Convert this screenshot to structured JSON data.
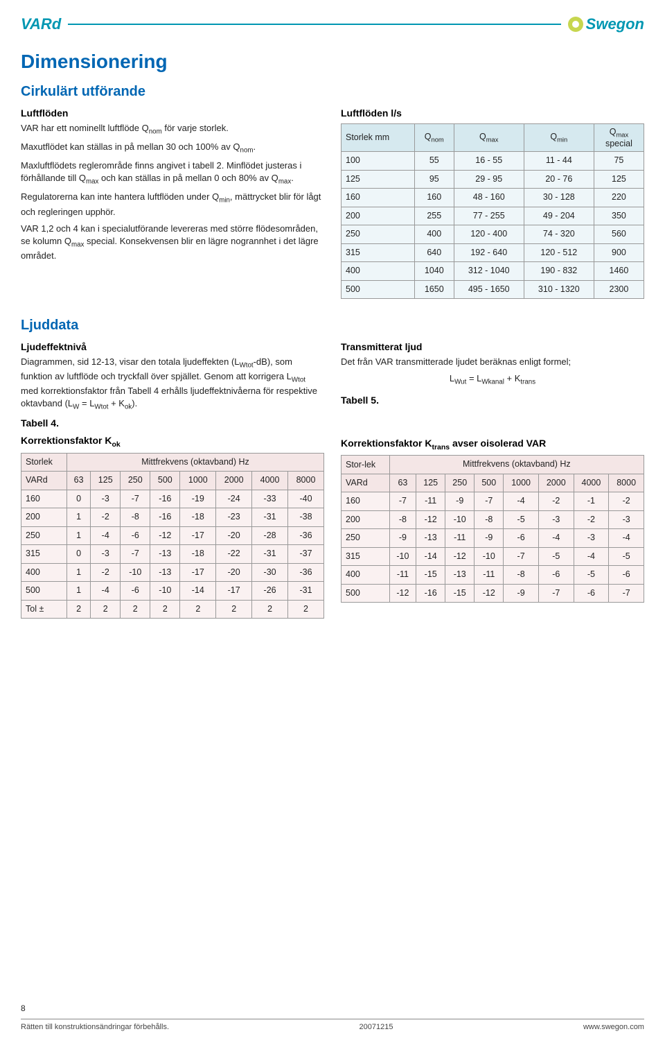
{
  "header": {
    "product": "VARd",
    "brand": "Swegon"
  },
  "sections": {
    "dimensionering_h1": "Dimensionering",
    "cirkulart_h2": "Cirkulärt utförande",
    "luftfloden_h3": "Luftflöden",
    "luftfloden_p1": "VAR har ett nominellt luftflöde Q",
    "luftfloden_p1_sub": "nom",
    "luftfloden_p1b": " för varje storlek.",
    "luftfloden_p2a": "Maxutflödet kan ställas in på mellan 30 och 100% av Q",
    "luftfloden_p2_sub": "nom",
    "luftfloden_p2b": ".",
    "luftfloden_p3a": "Maxluftflödets reglerområde finns angivet i tabell 2. Minflödet justeras i förhållande till Q",
    "luftfloden_p3_sub1": "max",
    "luftfloden_p3b": " och kan ställas in på mellan 0 och 80% av Q",
    "luftfloden_p3_sub2": "max",
    "luftfloden_p3c": ".",
    "luftfloden_p4a": "Regulatorerna kan inte hantera luftflöden under Q",
    "luftfloden_p4_sub": "min",
    "luftfloden_p4b": ", mättrycket blir för lågt och regleringen upphör.",
    "luftfloden_p5a": "VAR 1,2 och 4 kan i specialutförande levereras med större flödesområden, se kolumn Q",
    "luftfloden_p5_sub": "max",
    "luftfloden_p5b": " special. Konsekvensen blir en lägre nogrannhet i det lägre området.",
    "ljuddata_h2": "Ljuddata",
    "ljudeffekt_h3": "Ljudeffektnivå",
    "ljudeffekt_p1a": "Diagrammen, sid 12-13, visar den totala ljudeffekten (L",
    "ljudeffekt_p1_sub1": "Wtot",
    "ljudeffekt_p1b": "-dB), som funktion av luftflöde och tryckfall över spjället. Genom att korrigera L",
    "ljudeffekt_p1_sub2": "Wtot",
    "ljudeffekt_p1c": " med korrektionsfaktor från Tabell 4 erhålls ljudeffektnivåerna för respektive oktavband (L",
    "ljudeffekt_p1_sub3": "W",
    "ljudeffekt_p1d": " = L",
    "ljudeffekt_p1_sub4": "Wtot",
    "ljudeffekt_p1e": " + K",
    "ljudeffekt_p1_sub5": "ok",
    "ljudeffekt_p1f": ").",
    "tabell4_h3": "Tabell 4.",
    "kok_h3": "Korrektionsfaktor K",
    "kok_sub": "ok",
    "transmitterat_h3": "Transmitterat ljud",
    "transmitterat_p": "Det från VAR transmitterade ljudet beräknas enligt formel;",
    "formula_a": "L",
    "formula_a_sub": "Wut",
    "formula_eq": " = L",
    "formula_b_sub": "Wkanal",
    "formula_plus": " + K",
    "formula_c_sub": "trans",
    "tabell5_h3": "Tabell 5.",
    "ktrans_h3a": "Korrektionsfaktor K",
    "ktrans_sub": "trans",
    "ktrans_h3b": " avser oisolerad VAR",
    "luftfloden_ls_h3": "Luftflöden l/s"
  },
  "flow_table": {
    "head_storlek": "Storlek mm",
    "head_qnom": "Q",
    "head_qnom_sub": "nom",
    "head_qmax": "Q",
    "head_qmax_sub": "max",
    "head_qmin": "Q",
    "head_qmin_sub": "min",
    "head_qspec": "Q",
    "head_qspec_sub": "max",
    "head_qspec2": "special",
    "rows": [
      {
        "size": "100",
        "qnom": "55",
        "qmax": "16 - 55",
        "qmin": "11 - 44",
        "qspec": "75"
      },
      {
        "size": "125",
        "qnom": "95",
        "qmax": "29 - 95",
        "qmin": "20 - 76",
        "qspec": "125"
      },
      {
        "size": "160",
        "qnom": "160",
        "qmax": "48 - 160",
        "qmin": "30 - 128",
        "qspec": "220"
      },
      {
        "size": "200",
        "qnom": "255",
        "qmax": "77 - 255",
        "qmin": "49 - 204",
        "qspec": "350"
      },
      {
        "size": "250",
        "qnom": "400",
        "qmax": "120 - 400",
        "qmin": "74 - 320",
        "qspec": "560"
      },
      {
        "size": "315",
        "qnom": "640",
        "qmax": "192 - 640",
        "qmin": "120 - 512",
        "qspec": "900"
      },
      {
        "size": "400",
        "qnom": "1040",
        "qmax": "312 - 1040",
        "qmin": "190 - 832",
        "qspec": "1460"
      },
      {
        "size": "500",
        "qnom": "1650",
        "qmax": "495 - 1650",
        "qmin": "310 - 1320",
        "qspec": "2300"
      }
    ]
  },
  "kok_table": {
    "head_storlek": "Storlek",
    "head_vard": "VARd",
    "head_mitt": "Mittfrekvens (oktavband) Hz",
    "freqs": [
      "63",
      "125",
      "250",
      "500",
      "1000",
      "2000",
      "4000",
      "8000"
    ],
    "rows": [
      {
        "size": "160",
        "v": [
          "0",
          "-3",
          "-7",
          "-16",
          "-19",
          "-24",
          "-33",
          "-40"
        ]
      },
      {
        "size": "200",
        "v": [
          "1",
          "-2",
          "-8",
          "-16",
          "-18",
          "-23",
          "-31",
          "-38"
        ]
      },
      {
        "size": "250",
        "v": [
          "1",
          "-4",
          "-6",
          "-12",
          "-17",
          "-20",
          "-28",
          "-36"
        ]
      },
      {
        "size": "315",
        "v": [
          "0",
          "-3",
          "-7",
          "-13",
          "-18",
          "-22",
          "-31",
          "-37"
        ]
      },
      {
        "size": "400",
        "v": [
          "1",
          "-2",
          "-10",
          "-13",
          "-17",
          "-20",
          "-30",
          "-36"
        ]
      },
      {
        "size": "500",
        "v": [
          "1",
          "-4",
          "-6",
          "-10",
          "-14",
          "-17",
          "-26",
          "-31"
        ]
      },
      {
        "size": "Tol ±",
        "v": [
          "2",
          "2",
          "2",
          "2",
          "2",
          "2",
          "2",
          "2"
        ]
      }
    ]
  },
  "ktrans_table": {
    "head_storlek": "Stor-lek",
    "head_vard": "VARd",
    "head_mitt": "Mittfrekvens (oktavband) Hz",
    "freqs": [
      "63",
      "125",
      "250",
      "500",
      "1000",
      "2000",
      "4000",
      "8000"
    ],
    "rows": [
      {
        "size": "160",
        "v": [
          "-7",
          "-11",
          "-9",
          "-7",
          "-4",
          "-2",
          "-1",
          "-2"
        ]
      },
      {
        "size": "200",
        "v": [
          "-8",
          "-12",
          "-10",
          "-8",
          "-5",
          "-3",
          "-2",
          "-3"
        ]
      },
      {
        "size": "250",
        "v": [
          "-9",
          "-13",
          "-11",
          "-9",
          "-6",
          "-4",
          "-3",
          "-4"
        ]
      },
      {
        "size": "315",
        "v": [
          "-10",
          "-14",
          "-12",
          "-10",
          "-7",
          "-5",
          "-4",
          "-5"
        ]
      },
      {
        "size": "400",
        "v": [
          "-11",
          "-15",
          "-13",
          "-11",
          "-8",
          "-6",
          "-5",
          "-6"
        ]
      },
      {
        "size": "500",
        "v": [
          "-12",
          "-16",
          "-15",
          "-12",
          "-9",
          "-7",
          "-6",
          "-7"
        ]
      }
    ]
  },
  "footer": {
    "page": "8",
    "left": "Rätten till konstruktionsändringar förbehålls.",
    "mid": "20071215",
    "right": "www.swegon.com"
  }
}
